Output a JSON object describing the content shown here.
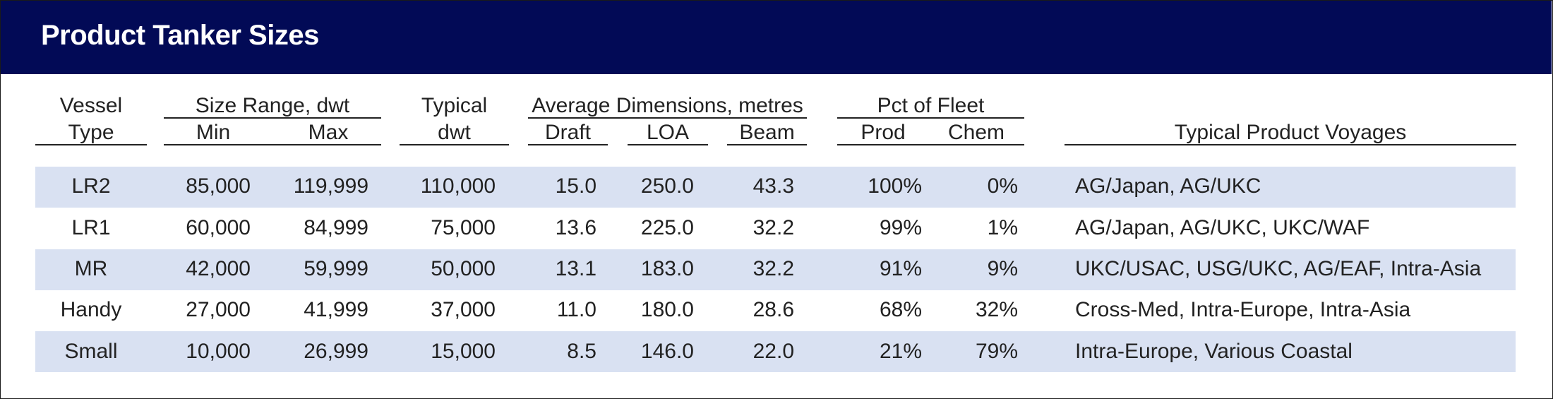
{
  "title": "Product Tanker Sizes",
  "header": {
    "vessel_top": "Vessel",
    "vessel_bottom": "Type",
    "size_range": "Size Range, dwt",
    "min": "Min",
    "max": "Max",
    "typical_top": "Typical",
    "typical_bottom": "dwt",
    "avg_dims": "Average Dimensions, metres",
    "draft": "Draft",
    "loa": "LOA",
    "beam": "Beam",
    "pct_fleet": "Pct of Fleet",
    "prod": "Prod",
    "chem": "Chem",
    "voyages": "Typical Product Voyages"
  },
  "rows": [
    {
      "type": "LR2",
      "min": "85,000",
      "max": "119,999",
      "typical": "110,000",
      "draft": "15.0",
      "loa": "250.0",
      "beam": "43.3",
      "prod": "100%",
      "chem": "0%",
      "voyages": "AG/Japan, AG/UKC"
    },
    {
      "type": "LR1",
      "min": "60,000",
      "max": "84,999",
      "typical": "75,000",
      "draft": "13.6",
      "loa": "225.0",
      "beam": "32.2",
      "prod": "99%",
      "chem": "1%",
      "voyages": "AG/Japan, AG/UKC, UKC/WAF"
    },
    {
      "type": "MR",
      "min": "42,000",
      "max": "59,999",
      "typical": "50,000",
      "draft": "13.1",
      "loa": "183.0",
      "beam": "32.2",
      "prod": "91%",
      "chem": "9%",
      "voyages": "UKC/USAC, USG/UKC, AG/EAF, Intra-Asia"
    },
    {
      "type": "Handy",
      "min": "27,000",
      "max": "41,999",
      "typical": "37,000",
      "draft": "11.0",
      "loa": "180.0",
      "beam": "28.6",
      "prod": "68%",
      "chem": "32%",
      "voyages": "Cross-Med, Intra-Europe, Intra-Asia"
    },
    {
      "type": "Small",
      "min": "10,000",
      "max": "26,999",
      "typical": "15,000",
      "draft": "8.5",
      "loa": "146.0",
      "beam": "22.0",
      "prod": "21%",
      "chem": "79%",
      "voyages": "Intra-Europe, Various Coastal"
    }
  ],
  "colors": {
    "title_bar": "#020a56",
    "band": "#d9e1f2"
  }
}
